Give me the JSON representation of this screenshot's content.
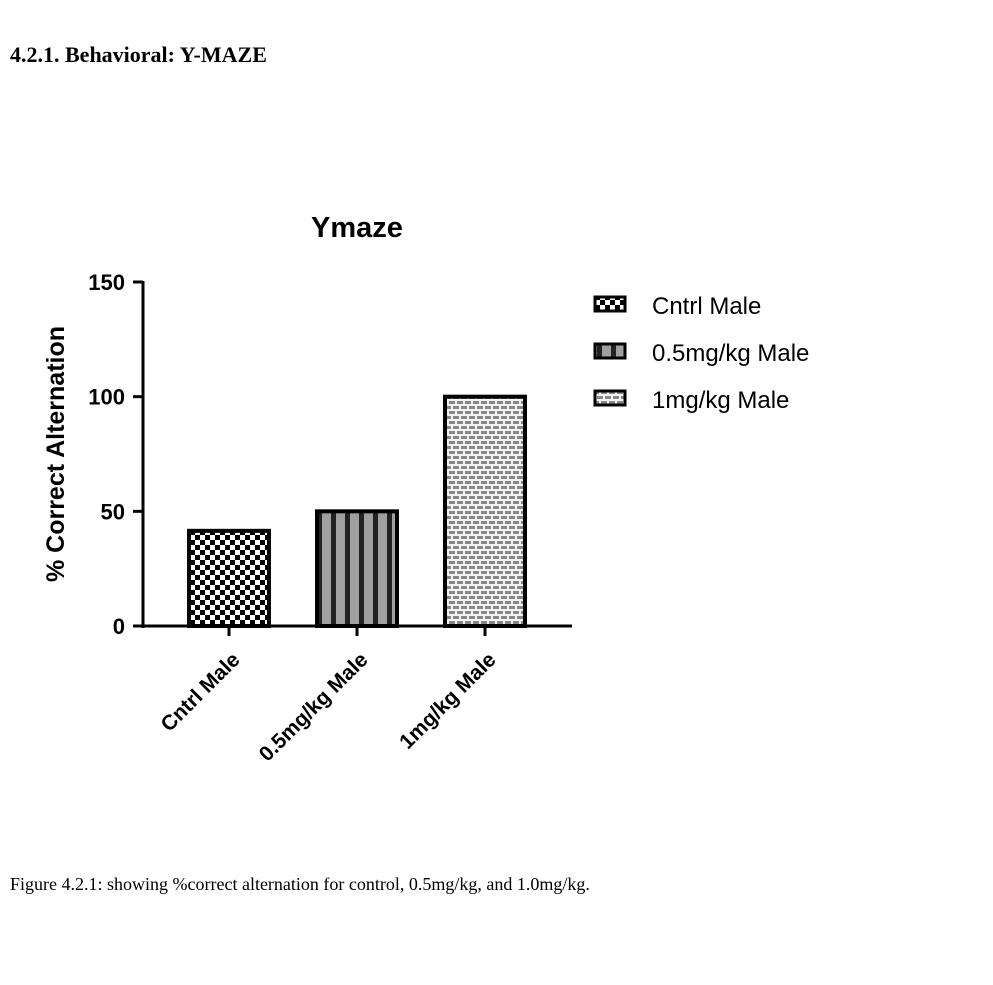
{
  "heading": "4.2.1. Behavioral: Y-MAZE",
  "caption": "Figure 4.2.1: showing %correct alternation for control, 0.5mg/kg, and 1.0mg/kg.",
  "chart_data": {
    "type": "bar",
    "title": "Ymaze",
    "ylabel": "% Correct Alternation",
    "xlabel": "",
    "ylim": [
      0,
      150
    ],
    "yticks": [
      0,
      50,
      100,
      150
    ],
    "categories": [
      "Cntrl Male",
      "0.5mg/kg Male",
      "1mg/kg Male"
    ],
    "values": [
      41.5,
      50,
      100
    ],
    "patterns": [
      "checkerboard",
      "vertical-stripes",
      "brick"
    ],
    "legend": {
      "position": "right",
      "entries": [
        "Cntrl Male",
        "0.5mg/kg Male",
        "1mg/kg Male"
      ]
    },
    "grid": false
  }
}
